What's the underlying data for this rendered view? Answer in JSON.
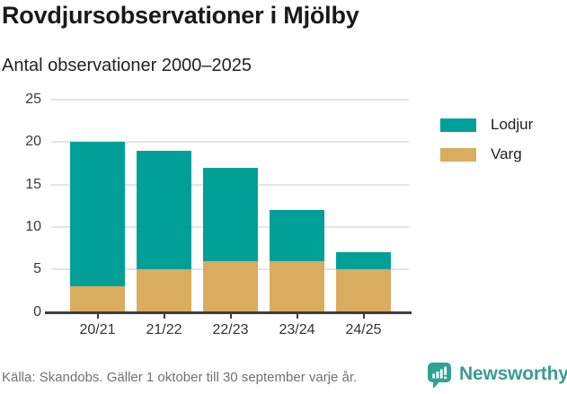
{
  "header": {
    "title": "Rovdjursobservationer i Mjölby",
    "subtitle": "Antal observationer 2000–2025"
  },
  "chart_data": {
    "type": "bar",
    "stacked": true,
    "title": "Rovdjursobservationer i Mjölby",
    "subtitle": "Antal observationer 2000–2025",
    "categories": [
      "20/21",
      "21/22",
      "22/23",
      "23/24",
      "24/25"
    ],
    "series": [
      {
        "name": "Lodjur",
        "color": "#00A099",
        "values": [
          17,
          14,
          11,
          6,
          2
        ]
      },
      {
        "name": "Varg",
        "color": "#D9AC5E",
        "values": [
          3,
          5,
          6,
          6,
          5
        ]
      }
    ],
    "totals": [
      20,
      19,
      17,
      12,
      7
    ],
    "xlabel": "",
    "ylabel": "",
    "ylim": [
      0,
      25
    ],
    "yticks": [
      0,
      5,
      10,
      15,
      20,
      25
    ],
    "grid": true,
    "legend_position": "right-top"
  },
  "colors": {
    "lodjur": "#00A099",
    "varg": "#D9AC5E",
    "gridline": "#E4E4E4",
    "axis": "#3D3D3D",
    "brand_teal": "#3A9C93"
  },
  "footer": {
    "source": "Källa: Skandobs. Gäller 1 oktober till 30 september varje år.",
    "brand": "Newsworthy"
  }
}
